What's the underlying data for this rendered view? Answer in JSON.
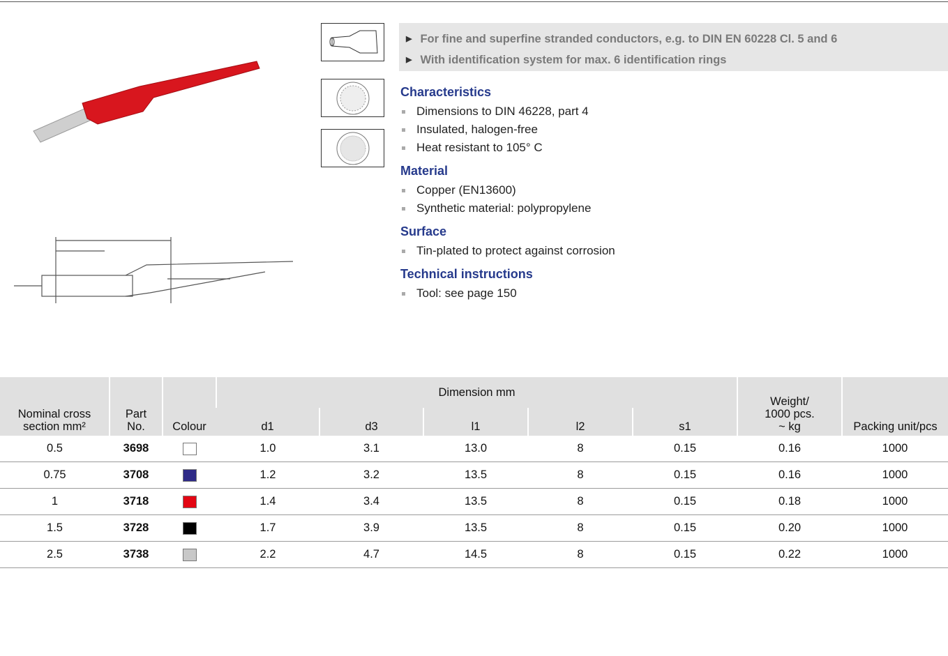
{
  "highlights": [
    "For fine and superfine stranded conductors, e.g. to DIN EN 60228 Cl. 5 and 6",
    "With identification system for max. 6 identification rings"
  ],
  "sections": [
    {
      "title": "Characteristics",
      "items": [
        "Dimensions to DIN 46228, part 4",
        "Insulated, halogen-free",
        "Heat resistant to 105° C"
      ]
    },
    {
      "title": "Material",
      "items": [
        "Copper (EN13600)",
        "Synthetic material: polypropylene"
      ]
    },
    {
      "title": "Surface",
      "items": [
        "Tin-plated to protect against corrosion"
      ]
    },
    {
      "title": "Technical instructions",
      "items": [
        "Tool: see page 150"
      ]
    }
  ],
  "table": {
    "headers": [
      "Nominal cross\nsection mm²",
      "Part\nNo.",
      "Colour",
      "Dimension mm",
      "Weight/\n1000 pcs.\n~ kg",
      "Packing unit/pcs"
    ],
    "dimension_columns": [
      "d1",
      "d3",
      "l1",
      "l2",
      "s1"
    ],
    "rows": [
      [
        "0.5",
        "3698",
        "#ffffff",
        "1.0",
        "3.1",
        "13.0",
        "8",
        "0.15",
        "0.16",
        "1000"
      ],
      [
        "0.75",
        "3708",
        "#2e2a87",
        "1.2",
        "3.2",
        "13.5",
        "8",
        "0.15",
        "0.16",
        "1000"
      ],
      [
        "1",
        "3718",
        "#e30613",
        "1.4",
        "3.4",
        "13.5",
        "8",
        "0.15",
        "0.18",
        "1000"
      ],
      [
        "1.5",
        "3728",
        "#000000",
        "1.7",
        "3.9",
        "13.5",
        "8",
        "0.15",
        "0.20",
        "1000"
      ],
      [
        "2.5",
        "3738",
        "#c8c8c8",
        "2.2",
        "4.7",
        "14.5",
        "8",
        "0.15",
        "0.22",
        "1000"
      ]
    ]
  }
}
